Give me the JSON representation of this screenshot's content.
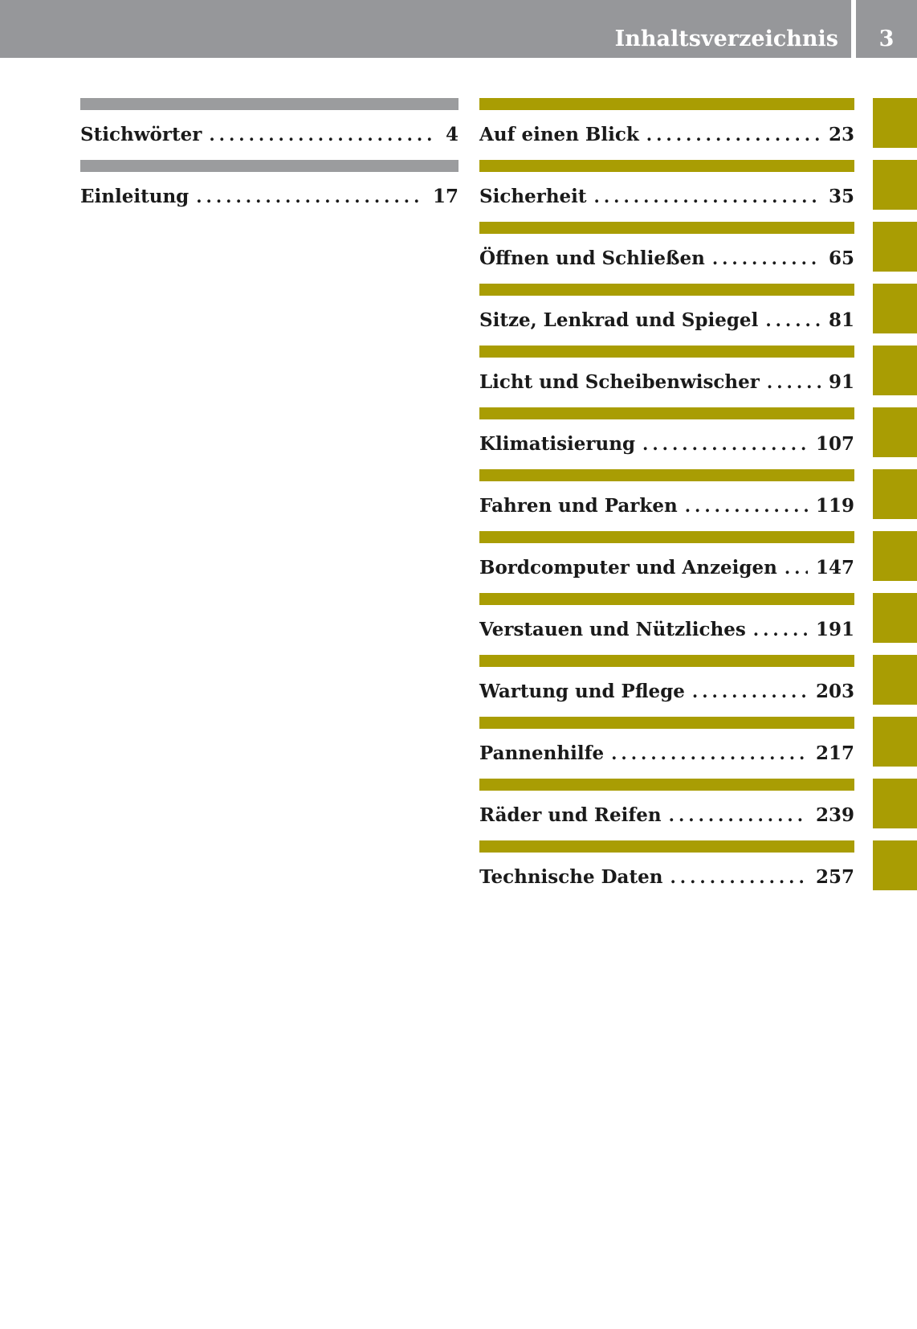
{
  "header": {
    "title": "Inhaltsverzeichnis",
    "page_number": "3"
  },
  "left_column": {
    "items": [
      {
        "label": "Stichwörter",
        "page": "4"
      },
      {
        "label": "Einleitung",
        "page": "17"
      }
    ]
  },
  "right_column": {
    "items": [
      {
        "label": "Auf einen Blick",
        "page": "23"
      },
      {
        "label": "Sicherheit",
        "page": "35"
      },
      {
        "label": "Öffnen und Schließen",
        "page": "65"
      },
      {
        "label": "Sitze, Lenkrad und Spiegel",
        "page": "81"
      },
      {
        "label": "Licht und Scheibenwischer",
        "page": "91"
      },
      {
        "label": "Klimatisierung",
        "page": "107"
      },
      {
        "label": "Fahren und Parken",
        "page": "119"
      },
      {
        "label": "Bordcomputer und Anzeigen",
        "page": "147"
      },
      {
        "label": "Verstauen und Nützliches",
        "page": "191"
      },
      {
        "label": "Wartung und Pflege",
        "page": "203"
      },
      {
        "label": "Pannenhilfe",
        "page": "217"
      },
      {
        "label": "Räder und Reifen",
        "page": "239"
      },
      {
        "label": "Technische Daten",
        "page": "257"
      }
    ]
  },
  "tabs": {
    "count": 13
  },
  "colors": {
    "header_gray": "#96979a",
    "bar_gray": "#9b9c9e",
    "chapter_olive": "#a99d03",
    "text": "#1a1a1a",
    "background": "#ffffff"
  }
}
